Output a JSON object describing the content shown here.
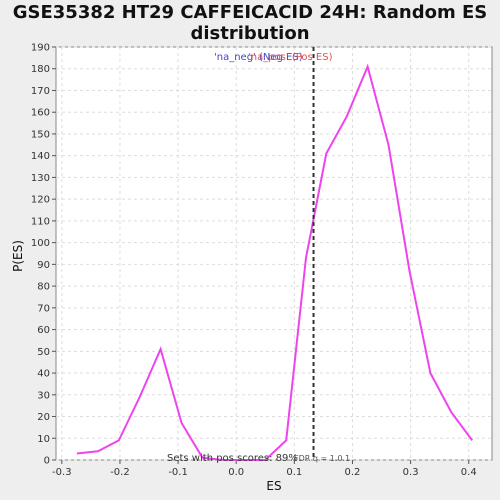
{
  "chart_data": {
    "type": "line",
    "title_line1": "GSE35382 HT29 CAFFEICACID 24H: Random ES",
    "title_line2": "distribution",
    "xlabel": "ES",
    "ylabel": "P(ES)",
    "xlim": [
      -0.31,
      0.44
    ],
    "ylim": [
      0,
      190
    ],
    "xticks": [
      "-0.3",
      "-0.2",
      "-0.1",
      "0.0",
      "0.1",
      "0.2",
      "0.3",
      "0.4"
    ],
    "xtick_values": [
      -0.3,
      -0.2,
      -0.1,
      0.0,
      0.1,
      0.2,
      0.3,
      0.4
    ],
    "yticks": [
      0,
      10,
      20,
      30,
      40,
      50,
      60,
      70,
      80,
      90,
      100,
      110,
      120,
      130,
      140,
      150,
      160,
      170,
      180,
      190
    ],
    "grid": true,
    "series": [
      {
        "name": "Random ES",
        "color": "#ee44ee",
        "x": [
          -0.274,
          -0.238,
          -0.202,
          -0.166,
          -0.13,
          -0.094,
          -0.058,
          -0.022,
          0.014,
          0.05,
          0.086,
          0.12,
          0.155,
          0.19,
          0.226,
          0.262,
          0.298,
          0.334,
          0.37,
          0.406
        ],
        "y": [
          3,
          4,
          9,
          29,
          51,
          17,
          1,
          0,
          0,
          0,
          9,
          93,
          141,
          158,
          181,
          145,
          87,
          40,
          22,
          9
        ]
      }
    ],
    "vline": {
      "x": 0.133,
      "color": "#333333"
    },
    "legend": {
      "neg_label": "'na_neg' (Neg ES)",
      "pos_label": "'na_pos' (Pos ES)"
    },
    "annotation": "Sets with pos scores: 89%",
    "annotation_small": "FDR q = 1.0.1"
  }
}
